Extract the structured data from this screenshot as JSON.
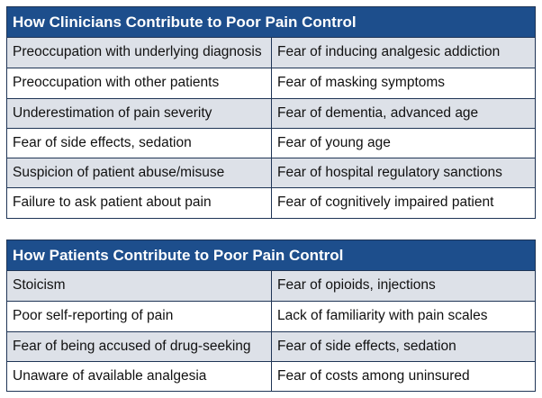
{
  "tables": [
    {
      "title": "How Clinicians Contribute to Poor Pain Control",
      "rows": [
        [
          "Preoccupation with underlying diagnosis",
          "Fear of inducing analgesic addiction"
        ],
        [
          "Preoccupation with other patients",
          "Fear of masking symptoms"
        ],
        [
          "Underestimation of pain severity",
          "Fear of dementia, advanced age"
        ],
        [
          "Fear of side effects, sedation",
          "Fear of young age"
        ],
        [
          "Suspicion of patient abuse/misuse",
          "Fear of hospital regulatory sanctions"
        ],
        [
          "Failure to ask patient about pain",
          "Fear of cognitively impaired patient"
        ]
      ]
    },
    {
      "title": "How Patients Contribute to Poor Pain Control",
      "rows": [
        [
          "Stoicism",
          "Fear of opioids, injections"
        ],
        [
          "Poor self-reporting of pain",
          "Lack of familiarity with pain scales"
        ],
        [
          "Fear of being accused of drug-seeking",
          "Fear of side effects, sedation"
        ],
        [
          "Unaware of available analgesia",
          "Fear of costs among uninsured"
        ]
      ]
    }
  ],
  "colors": {
    "header_bg": "#1d4e8c",
    "header_text": "#ffffff",
    "shaded_row": "#dde1e8",
    "border": "#1f3556"
  }
}
